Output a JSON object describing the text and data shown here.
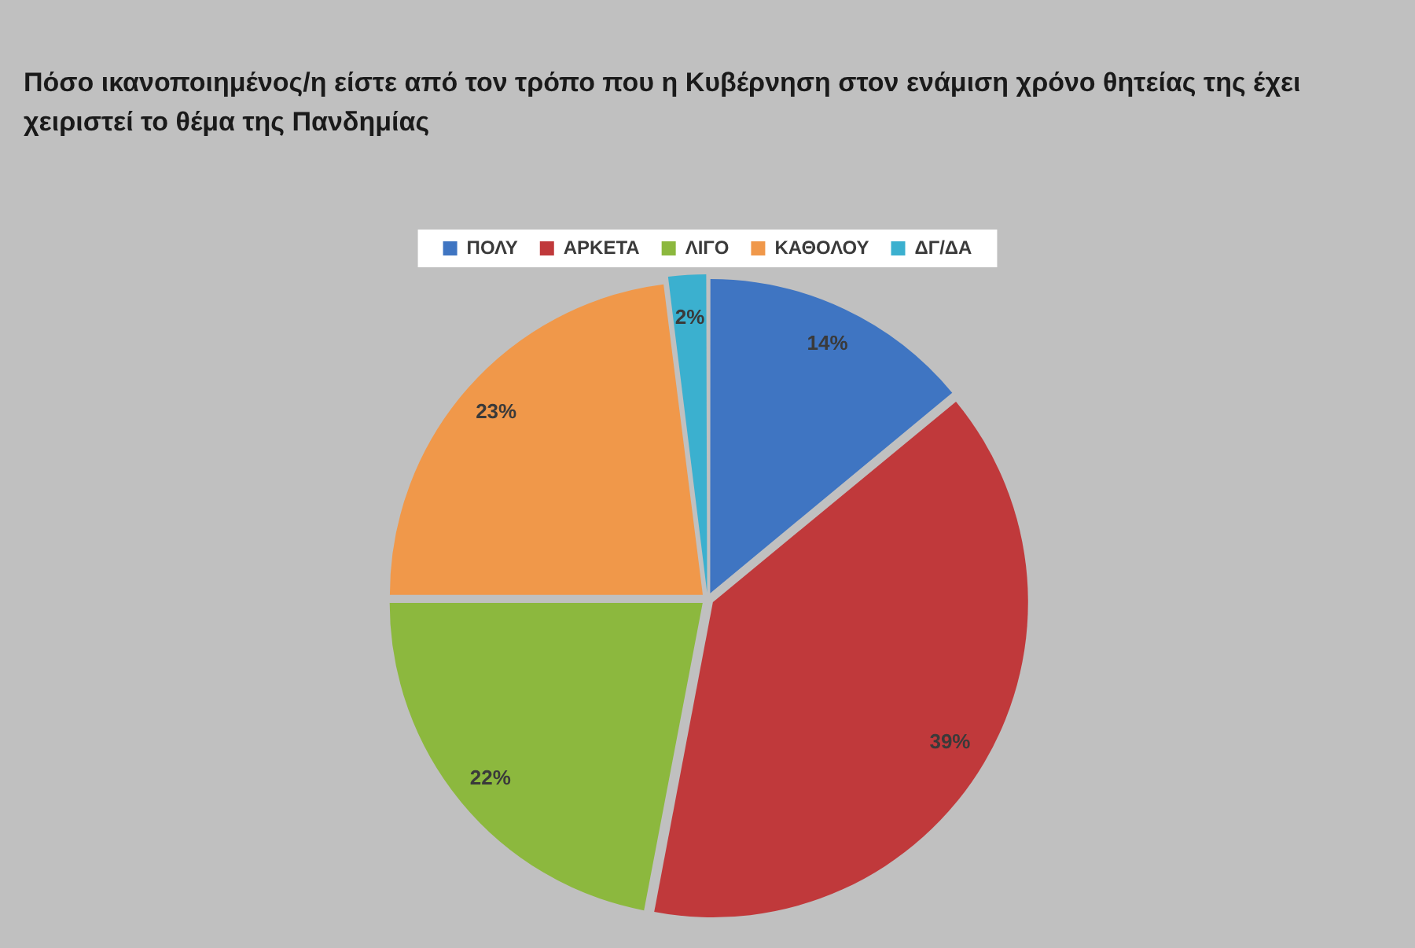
{
  "chart_data": {
    "type": "pie",
    "title": "Πόσο ικανοποιημένος/η είστε από τον τρόπο που η Κυβέρνηση στον ενάμιση χρόνο θητείας της έχει χειριστεί το θέμα της Πανδημίας",
    "categories": [
      "ΠΟΛΥ",
      "ΑΡΚΕΤΑ",
      "ΛΙΓΟ",
      "ΚΑΘΟΛΟΥ",
      "ΔΓ/ΔΑ"
    ],
    "values": [
      14,
      39,
      22,
      23,
      2
    ],
    "colors": [
      "#3f75c2",
      "#c0393b",
      "#8cb83e",
      "#f0984a",
      "#3bb0cf"
    ],
    "value_labels": [
      "14%",
      "39%",
      "22%",
      "23%",
      "2%"
    ],
    "legend": "top"
  }
}
